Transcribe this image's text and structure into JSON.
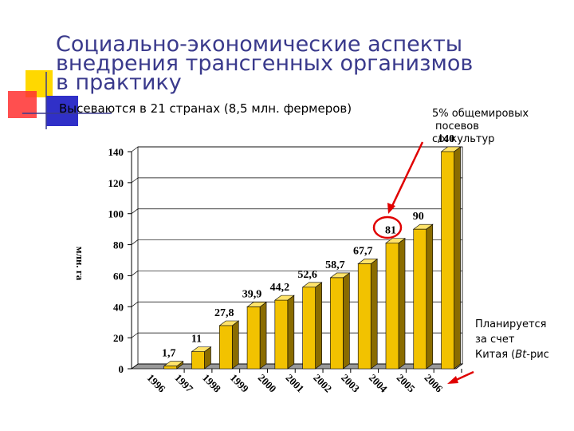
{
  "chart_data": {
    "type": "bar3d",
    "title": [
      "Социально-экономические аспекты",
      "внедрения трансгенных организмов",
      "в практику"
    ],
    "subtitle": "Высеваются в 21 странах (8,5 млн. фермеров)",
    "y_label": "млн. га",
    "annotation_top": [
      "5% общемировых",
      "посевов",
      "с/х культур"
    ],
    "annotation_right": [
      "Планируется",
      "за счет",
      "Китая (",
      "Bt",
      "-рис"
    ],
    "categories": [
      "1996",
      "1997",
      "1998",
      "1999",
      "2000",
      "2001",
      "2002",
      "2003",
      "2004",
      "2005",
      "2006"
    ],
    "values": [
      1.7,
      11,
      27.8,
      39.9,
      44.2,
      52.6,
      58.7,
      67.7,
      81,
      90,
      140
    ],
    "value_labels": [
      "1,7",
      "11",
      "27,8",
      "39,9",
      "44,2",
      "52,6",
      "58,7",
      "67,7",
      "81",
      "90",
      "140"
    ],
    "color": "#f2c200",
    "ylim": [
      0,
      140
    ],
    "yticks": [
      0,
      20,
      40,
      60,
      80,
      100,
      120,
      140
    ],
    "grid": true
  }
}
